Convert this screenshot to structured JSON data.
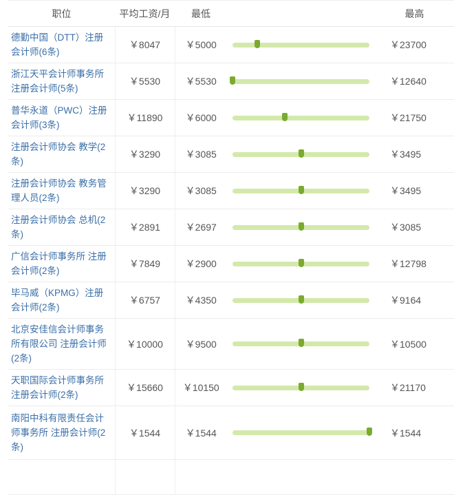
{
  "headers": {
    "title": "职位",
    "avg": "平均工资/月",
    "min": "最低",
    "bar": "",
    "max": "最高"
  },
  "accent_color": "#7aaa2e",
  "bar_color": "#d3e9ab",
  "rows": [
    {
      "title": "德勤中国（DTT）注册会计师(6条)",
      "avg": "￥8047",
      "min": "￥5000",
      "max": "￥23700",
      "marker": 0.18
    },
    {
      "title": "浙江天平会计师事务所注册会计师(5条)",
      "avg": "￥5530",
      "min": "￥5530",
      "max": "￥12640",
      "marker": 0.0
    },
    {
      "title": "普华永道（PWC）注册会计师(3条)",
      "avg": "￥11890",
      "min": "￥6000",
      "max": "￥21750",
      "marker": 0.38
    },
    {
      "title": "注册会计师协会 教学(2条)",
      "avg": "￥3290",
      "min": "￥3085",
      "max": "￥3495",
      "marker": 0.5
    },
    {
      "title": "注册会计师协会 教务管理人员(2条)",
      "avg": "￥3290",
      "min": "￥3085",
      "max": "￥3495",
      "marker": 0.5
    },
    {
      "title": "注册会计师协会 总机(2条)",
      "avg": "￥2891",
      "min": "￥2697",
      "max": "￥3085",
      "marker": 0.5
    },
    {
      "title": "广信会计师事务所 注册会计师(2条)",
      "avg": "￥7849",
      "min": "￥2900",
      "max": "￥12798",
      "marker": 0.5
    },
    {
      "title": "毕马威（KPMG）注册会计师(2条)",
      "avg": "￥6757",
      "min": "￥4350",
      "max": "￥9164",
      "marker": 0.5
    },
    {
      "title": "北京安佳信会计师事务所有限公司 注册会计师(2条)",
      "avg": "￥10000",
      "min": "￥9500",
      "max": "￥10500",
      "marker": 0.5
    },
    {
      "title": "天职国际会计师事务所注册会计师(2条)",
      "avg": "￥15660",
      "min": "￥10150",
      "max": "￥21170",
      "marker": 0.5
    },
    {
      "title": "南阳中科有限责任会计师事务所 注册会计师(2条)",
      "avg": "￥1544",
      "min": "￥1544",
      "max": "￥1544",
      "marker": 1.0
    }
  ]
}
